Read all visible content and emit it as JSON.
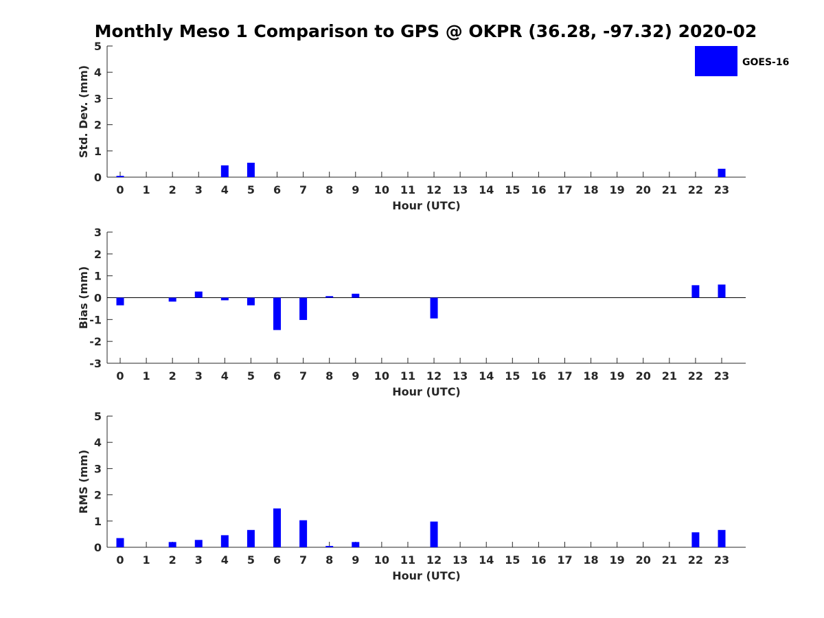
{
  "title": "Monthly Meso 1 Comparison to GPS @ OKPR (36.28, -97.32) 2020-02",
  "legend": {
    "label": "GOES-16",
    "color": "#0000ff",
    "placement": "top-right"
  },
  "bar_color": "#0000ff",
  "chart_data": [
    {
      "type": "bar",
      "ylabel": "Std. Dev. (mm)",
      "xlabel": "Hour (UTC)",
      "ylim": [
        0,
        5
      ],
      "yticks": [
        0,
        1,
        2,
        3,
        4,
        5
      ],
      "categories": [
        "0",
        "1",
        "2",
        "3",
        "4",
        "5",
        "6",
        "7",
        "8",
        "9",
        "10",
        "11",
        "12",
        "13",
        "14",
        "15",
        "16",
        "17",
        "18",
        "19",
        "20",
        "21",
        "22",
        "23"
      ],
      "values": [
        0.05,
        0,
        0,
        0,
        0.45,
        0.55,
        0,
        0,
        0,
        0,
        0,
        0,
        0,
        0,
        0,
        0,
        0,
        0,
        0,
        0,
        0,
        0,
        0,
        0.32
      ]
    },
    {
      "type": "bar",
      "ylabel": "Bias (mm)",
      "xlabel": "Hour (UTC)",
      "ylim": [
        -3,
        3
      ],
      "yticks": [
        -3,
        -2,
        -1,
        0,
        1,
        2,
        3
      ],
      "zero_line": true,
      "categories": [
        "0",
        "1",
        "2",
        "3",
        "4",
        "5",
        "6",
        "7",
        "8",
        "9",
        "10",
        "11",
        "12",
        "13",
        "14",
        "15",
        "16",
        "17",
        "18",
        "19",
        "20",
        "21",
        "22",
        "23"
      ],
      "values": [
        -0.35,
        0,
        -0.18,
        0.28,
        -0.12,
        -0.35,
        -1.48,
        -1.02,
        0.07,
        0.18,
        0,
        0,
        -0.95,
        0,
        0,
        0,
        0,
        0,
        0,
        0,
        0,
        0,
        0.57,
        0.6
      ]
    },
    {
      "type": "bar",
      "ylabel": "RMS (mm)",
      "xlabel": "Hour (UTC)",
      "ylim": [
        0,
        5
      ],
      "yticks": [
        0,
        1,
        2,
        3,
        4,
        5
      ],
      "categories": [
        "0",
        "1",
        "2",
        "3",
        "4",
        "5",
        "6",
        "7",
        "8",
        "9",
        "10",
        "11",
        "12",
        "13",
        "14",
        "15",
        "16",
        "17",
        "18",
        "19",
        "20",
        "21",
        "22",
        "23"
      ],
      "values": [
        0.35,
        0,
        0.2,
        0.28,
        0.46,
        0.66,
        1.48,
        1.03,
        0.05,
        0.2,
        0,
        0,
        0.98,
        0,
        0,
        0,
        0,
        0,
        0,
        0,
        0,
        0,
        0.57,
        0.66
      ]
    }
  ]
}
